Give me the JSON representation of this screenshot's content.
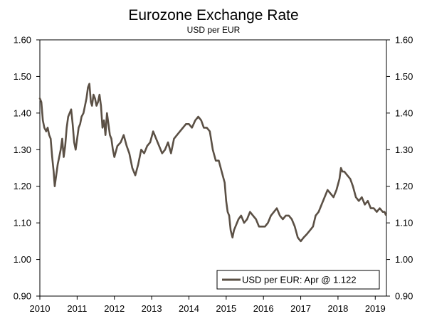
{
  "chart_data": {
    "type": "line",
    "title": "Eurozone Exchange Rate",
    "subtitle": "USD per EUR",
    "xlabel": "",
    "ylabel": "",
    "xlim": [
      2010.0,
      2019.3
    ],
    "ylim": [
      0.9,
      1.6
    ],
    "y_ticks": [
      "0.90",
      "1.00",
      "1.10",
      "1.20",
      "1.30",
      "1.40",
      "1.50",
      "1.60"
    ],
    "x_ticks": [
      "2010",
      "2011",
      "2012",
      "2013",
      "2014",
      "2015",
      "2016",
      "2017",
      "2018",
      "2019"
    ],
    "grid": false,
    "legend_position": "bottom-right",
    "series": [
      {
        "name": "USD per EUR: Apr @ 1.122",
        "color": "#5b5045",
        "x": [
          2010.0,
          2010.04,
          2010.08,
          2010.12,
          2010.17,
          2010.21,
          2010.25,
          2010.29,
          2010.33,
          2010.37,
          2010.4,
          2010.44,
          2010.48,
          2010.52,
          2010.56,
          2010.6,
          2010.64,
          2010.68,
          2010.72,
          2010.76,
          2010.8,
          2010.84,
          2010.88,
          2010.92,
          2010.96,
          2011.0,
          2011.04,
          2011.08,
          2011.12,
          2011.17,
          2011.21,
          2011.25,
          2011.29,
          2011.33,
          2011.37,
          2011.4,
          2011.44,
          2011.48,
          2011.52,
          2011.56,
          2011.6,
          2011.64,
          2011.68,
          2011.72,
          2011.76,
          2011.8,
          2011.84,
          2011.88,
          2011.92,
          2011.96,
          2012.0,
          2012.08,
          2012.17,
          2012.25,
          2012.33,
          2012.4,
          2012.48,
          2012.56,
          2012.64,
          2012.72,
          2012.8,
          2012.88,
          2012.96,
          2013.04,
          2013.12,
          2013.2,
          2013.28,
          2013.36,
          2013.44,
          2013.52,
          2013.6,
          2013.68,
          2013.76,
          2013.84,
          2013.92,
          2014.0,
          2014.08,
          2014.17,
          2014.25,
          2014.33,
          2014.4,
          2014.48,
          2014.56,
          2014.64,
          2014.72,
          2014.8,
          2014.88,
          2014.96,
          2015.0,
          2015.04,
          2015.08,
          2015.12,
          2015.17,
          2015.21,
          2015.25,
          2015.33,
          2015.4,
          2015.48,
          2015.56,
          2015.64,
          2015.72,
          2015.8,
          2015.88,
          2015.96,
          2016.04,
          2016.12,
          2016.2,
          2016.28,
          2016.36,
          2016.44,
          2016.52,
          2016.6,
          2016.68,
          2016.76,
          2016.84,
          2016.92,
          2017.0,
          2017.08,
          2017.17,
          2017.25,
          2017.33,
          2017.4,
          2017.48,
          2017.56,
          2017.64,
          2017.72,
          2017.8,
          2017.88,
          2017.96,
          2018.04,
          2018.08,
          2018.12,
          2018.17,
          2018.25,
          2018.33,
          2018.4,
          2018.48,
          2018.56,
          2018.64,
          2018.72,
          2018.8,
          2018.88,
          2018.96,
          2019.04,
          2019.12,
          2019.2,
          2019.25,
          2019.28
        ],
        "values": [
          1.44,
          1.43,
          1.38,
          1.36,
          1.35,
          1.36,
          1.34,
          1.33,
          1.28,
          1.24,
          1.2,
          1.23,
          1.26,
          1.28,
          1.3,
          1.33,
          1.28,
          1.31,
          1.36,
          1.39,
          1.4,
          1.41,
          1.37,
          1.32,
          1.3,
          1.33,
          1.36,
          1.37,
          1.39,
          1.4,
          1.42,
          1.44,
          1.47,
          1.48,
          1.43,
          1.42,
          1.45,
          1.44,
          1.42,
          1.43,
          1.45,
          1.42,
          1.36,
          1.38,
          1.34,
          1.4,
          1.37,
          1.34,
          1.33,
          1.3,
          1.28,
          1.31,
          1.32,
          1.34,
          1.31,
          1.29,
          1.25,
          1.23,
          1.26,
          1.3,
          1.29,
          1.31,
          1.32,
          1.35,
          1.33,
          1.31,
          1.29,
          1.3,
          1.32,
          1.29,
          1.33,
          1.34,
          1.35,
          1.36,
          1.37,
          1.37,
          1.36,
          1.38,
          1.39,
          1.38,
          1.36,
          1.36,
          1.35,
          1.3,
          1.27,
          1.27,
          1.24,
          1.21,
          1.16,
          1.13,
          1.12,
          1.08,
          1.06,
          1.08,
          1.09,
          1.11,
          1.12,
          1.1,
          1.11,
          1.13,
          1.12,
          1.11,
          1.09,
          1.09,
          1.09,
          1.1,
          1.12,
          1.13,
          1.14,
          1.12,
          1.11,
          1.12,
          1.12,
          1.11,
          1.09,
          1.06,
          1.05,
          1.06,
          1.07,
          1.08,
          1.09,
          1.12,
          1.13,
          1.15,
          1.17,
          1.19,
          1.18,
          1.17,
          1.19,
          1.22,
          1.25,
          1.24,
          1.24,
          1.23,
          1.22,
          1.2,
          1.17,
          1.16,
          1.17,
          1.15,
          1.16,
          1.14,
          1.14,
          1.13,
          1.14,
          1.13,
          1.13,
          1.122
        ]
      }
    ]
  }
}
